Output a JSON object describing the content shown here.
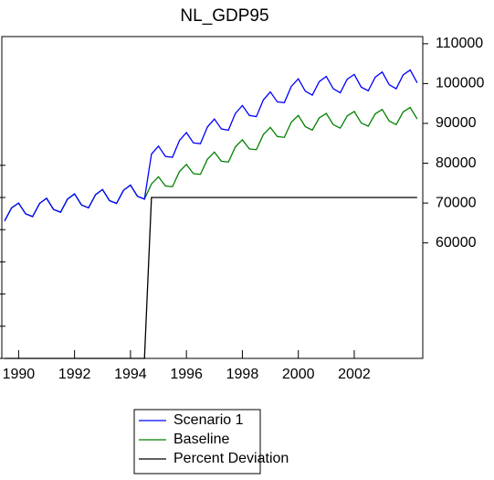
{
  "chart_data": {
    "type": "line",
    "title": "NL_GDP95",
    "x": [
      1989.5,
      1989.75,
      1990,
      1990.25,
      1990.5,
      1990.75,
      1991,
      1991.25,
      1991.5,
      1991.75,
      1992,
      1992.25,
      1992.5,
      1992.75,
      1993,
      1993.25,
      1993.5,
      1993.75,
      1994,
      1994.25,
      1994.5,
      1994.75,
      1995,
      1995.25,
      1995.5,
      1995.75,
      1996,
      1996.25,
      1996.5,
      1996.75,
      1997,
      1997.25,
      1997.5,
      1997.75,
      1998,
      1998.25,
      1998.5,
      1998.75,
      1999,
      1999.25,
      1999.5,
      1999.75,
      2000,
      2000.25,
      2000.5,
      2000.75,
      2001,
      2001.25,
      2001.5,
      2001.75,
      2002,
      2002.25,
      2002.5,
      2002.75,
      2003,
      2003.25,
      2003.5,
      2003.75,
      2004,
      2004.25
    ],
    "series": [
      {
        "name": "Scenario 1",
        "color": "#0000ff",
        "axis": "y2",
        "values": [
          65500,
          68800,
          70000,
          67300,
          66600,
          69900,
          71200,
          68400,
          67700,
          71000,
          72300,
          69500,
          68800,
          72100,
          73400,
          70600,
          69900,
          73200,
          74500,
          71700,
          71000,
          82300,
          84300,
          81700,
          81500,
          85700,
          87700,
          85100,
          84900,
          89100,
          91100,
          88600,
          88300,
          92500,
          94500,
          92000,
          91700,
          95900,
          97900,
          95400,
          95200,
          99300,
          101200,
          98100,
          97100,
          100500,
          101800,
          98700,
          97700,
          101100,
          102300,
          99100,
          98200,
          101600,
          102900,
          99700,
          98700,
          102200,
          103400,
          100200
        ]
      },
      {
        "name": "Baseline",
        "color": "#008000",
        "axis": "y2",
        "values": [
          65500,
          68800,
          70000,
          67300,
          66600,
          69900,
          71200,
          68400,
          67700,
          71000,
          72300,
          69500,
          68800,
          72100,
          73400,
          70600,
          69900,
          73200,
          74500,
          71700,
          71000,
          74800,
          76600,
          74300,
          74100,
          77900,
          79700,
          77400,
          77200,
          81000,
          82800,
          80500,
          80300,
          84100,
          85900,
          83600,
          83400,
          87200,
          89000,
          86700,
          86500,
          90300,
          92000,
          89200,
          88300,
          91400,
          92500,
          89700,
          88800,
          91900,
          93000,
          90100,
          89300,
          92400,
          93500,
          90600,
          89700,
          92900,
          94000,
          91100
        ]
      },
      {
        "name": "Percent Deviation",
        "color": "#000000",
        "values": [
          0,
          0,
          0,
          0,
          0,
          0,
          0,
          0,
          0,
          0,
          0,
          0,
          0,
          0,
          0,
          0,
          0,
          0,
          0,
          0,
          0,
          10,
          10,
          10,
          10,
          10,
          10,
          10,
          10,
          10,
          10,
          10,
          10,
          10,
          10,
          10,
          10,
          10,
          10,
          10,
          10,
          10,
          10,
          10,
          10,
          10,
          10,
          10,
          10,
          10,
          10,
          10,
          10,
          10,
          10,
          10,
          10,
          10,
          10,
          10
        ]
      }
    ],
    "xlim": [
      1989.4,
      2004.45
    ],
    "xticks": [
      1990,
      1992,
      1994,
      1996,
      1998,
      2000,
      2002
    ],
    "ylim": [
      0,
      20
    ],
    "yticks": [
      0,
      2,
      4,
      6,
      8,
      10,
      12
    ],
    "y2lim": [
      31000,
      111800
    ],
    "y2ticks": [
      60000,
      70000,
      80000,
      90000,
      100000,
      110000
    ]
  }
}
